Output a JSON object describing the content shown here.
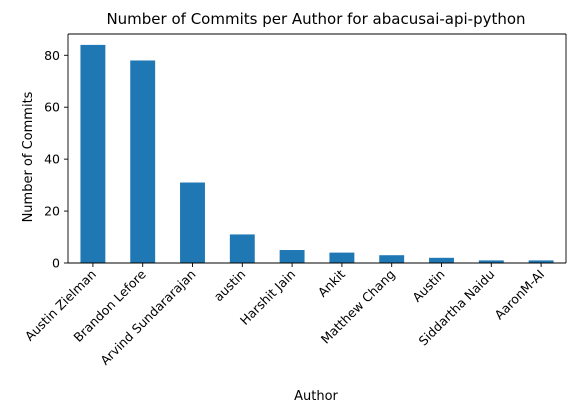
{
  "chart_data": {
    "type": "bar",
    "title": "Number of Commits per Author for abacusai-api-python",
    "xlabel": "Author",
    "ylabel": "Number of Commits",
    "categories": [
      "Austin Zielman",
      "Brandon Lefore",
      "Arvind Sundararajan",
      "austin",
      "Harshit Jain",
      "Ankit",
      "Matthew Chang",
      "Austin",
      "Siddartha Naidu",
      "AaronM-AI"
    ],
    "values": [
      84,
      78,
      31,
      11,
      5,
      4,
      3,
      2,
      1,
      1
    ],
    "ylim": [
      0,
      88.2
    ],
    "yticks": [
      0,
      20,
      40,
      60,
      80
    ],
    "grid": false,
    "legend": "none",
    "bar_color": "#1f77b4"
  }
}
